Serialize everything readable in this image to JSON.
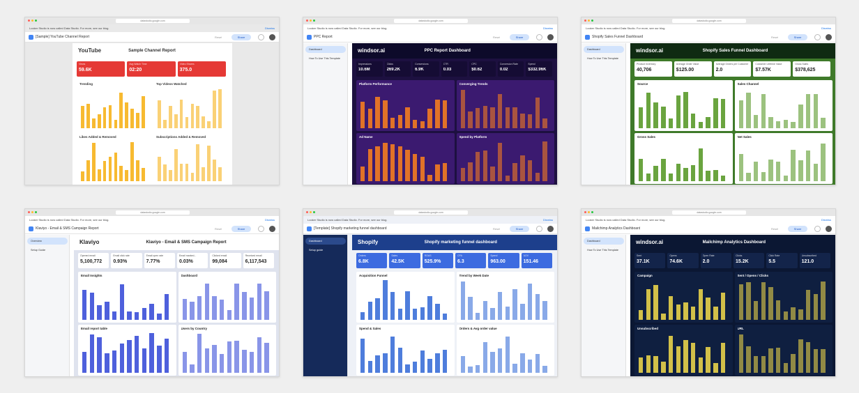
{
  "browser": {
    "url": "datastudio.google.com",
    "notice": "Looker Studio is now called Data Studio. For more, see our blog.",
    "dismiss": "Dismiss",
    "reset": "Reset",
    "share": "Share"
  },
  "panels": [
    {
      "tab_title": "[Sample] YouTube Channel Report",
      "sidebar": [],
      "dashboard": {
        "brand": "YouTube",
        "title": "Sample Channel Report",
        "kpis": [
          {
            "label": "Views",
            "value": "59.6K"
          },
          {
            "label": "Avg Watch Time",
            "value": "02:20"
          },
          {
            "label": "Video Shares",
            "value": "375.0"
          }
        ],
        "sections": [
          "Trending",
          "Top Videos Watched",
          "Likes Added & Removed",
          "Subscriptions Added & Removed"
        ]
      }
    },
    {
      "tab_title": "PPC Report",
      "sidebar": [
        "Dashboard",
        "How To Use This Template"
      ],
      "dashboard": {
        "brand": "windsor.ai",
        "title": "PPC Report Dashboard",
        "kpis": [
          {
            "label": "Impressions",
            "value": "10.6M"
          },
          {
            "label": "Clicks",
            "value": "269.2K"
          },
          {
            "label": "Conversions",
            "value": "6.9K"
          },
          {
            "label": "CTR",
            "value": "0.03"
          },
          {
            "label": "CPC",
            "value": "$0.62"
          },
          {
            "label": "Conversion Rate",
            "value": "0.02"
          },
          {
            "label": "Spend",
            "value": "$332.96K"
          }
        ],
        "sections": [
          "Platform Performance",
          "Converging Trends",
          "Ad Name",
          "Spend by Platform"
        ]
      }
    },
    {
      "tab_title": "Shopify Sales Funnel Dashboard",
      "sidebar": [
        "Dashboard",
        "How To Use This Template"
      ],
      "dashboard": {
        "brand": "windsor.ai",
        "title": "Shopify Sales Funnel Dashboard",
        "kpis": [
          {
            "label": "Product Inventory",
            "value": "40,706"
          },
          {
            "label": "Average Order Value",
            "value": "$125.00"
          },
          {
            "label": "Average Orders per Customer",
            "value": "2.0"
          },
          {
            "label": "Customer Lifetime Value",
            "value": "$7.57K"
          },
          {
            "label": "Gross Sales",
            "value": "$378,625"
          }
        ],
        "sections": [
          "Source",
          "Sales Channel",
          "Gross Sales",
          "Net Sales"
        ]
      }
    },
    {
      "tab_title": "Klaviyo - Email & SMS Campaign Report",
      "sidebar": [
        "Overview",
        "Setup Guide"
      ],
      "dashboard": {
        "brand": "Klaviyo",
        "title": "Klaviyo - Email & SMS Campaign Report",
        "kpis": [
          {
            "label": "Opened email",
            "value": "5,100,772"
          },
          {
            "label": "Email click rate",
            "value": "0.93%"
          },
          {
            "label": "Email open rate",
            "value": "7.77%"
          },
          {
            "label": "Email marked...",
            "value": "0.03%"
          },
          {
            "label": "Clicked email",
            "value": "99,084"
          },
          {
            "label": "Received email",
            "value": "6,117,543"
          }
        ],
        "sections": [
          "Email Insights",
          "Dashboard",
          "Email report table",
          "Users by Country"
        ]
      }
    },
    {
      "tab_title": "[Template] Shopify marketing funnel dashboard",
      "sidebar": [
        "Dashboard",
        "Setup guide"
      ],
      "dashboard": {
        "brand": "Shopify",
        "title": "Shopify marketing funnel dashboard",
        "kpis": [
          {
            "label": "Orders",
            "value": "6.8K"
          },
          {
            "label": "Sales",
            "value": "42.5K"
          },
          {
            "label": "ROAS",
            "value": "525.9%"
          },
          {
            "label": "CPA",
            "value": "6.3"
          },
          {
            "label": "Spend",
            "value": "963.00"
          },
          {
            "label": "AOV",
            "value": "151.46"
          }
        ],
        "sections": [
          "Acquisition Funnel",
          "Trend by Week Date",
          "Spend & Sales",
          "Orders & Avg order value"
        ]
      }
    },
    {
      "tab_title": "Mailchimp Analytics Dashboard",
      "sidebar": [
        "Dashboard",
        "How To Use This Template"
      ],
      "dashboard": {
        "brand": "windsor.ai",
        "title": "Mailchimp Analytics Dashboard",
        "kpis": [
          {
            "label": "Sent",
            "value": "37.1K"
          },
          {
            "label": "Opens",
            "value": "74.6K"
          },
          {
            "label": "Open Rate",
            "value": "2.0"
          },
          {
            "label": "Clicks",
            "value": "15.2K"
          },
          {
            "label": "Click Rate",
            "value": "5.5"
          },
          {
            "label": "Unsubscribed",
            "value": "121.0"
          }
        ],
        "sections": [
          "Campaign",
          "Sent / Opens / Clicks",
          "Unsubscribed",
          "URL"
        ]
      }
    }
  ]
}
